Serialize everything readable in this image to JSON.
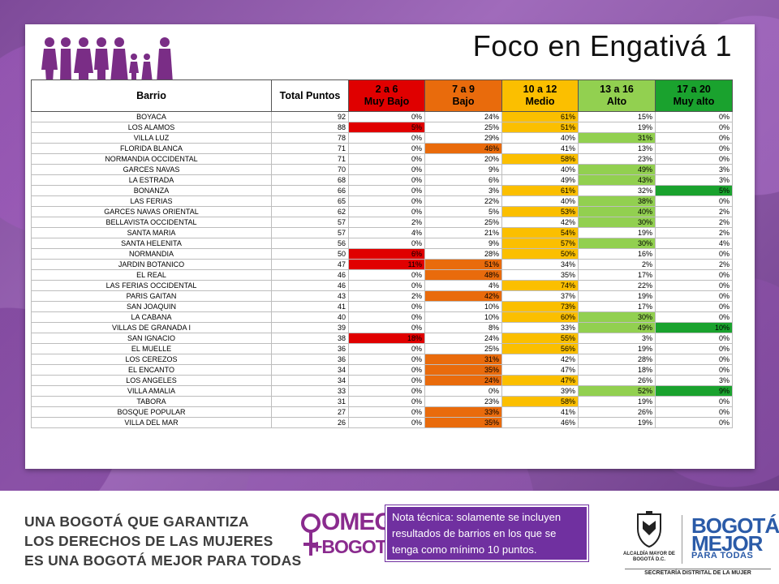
{
  "title": "Foco en Engativá 1",
  "table": {
    "headers": [
      {
        "line1": "Barrio",
        "line2": "",
        "color": "white"
      },
      {
        "line1": "Total Puntos",
        "line2": "",
        "color": "white"
      },
      {
        "line1": "2 a 6",
        "line2": "Muy Bajo",
        "color": "red"
      },
      {
        "line1": "7 a 9",
        "line2": "Bajo",
        "color": "orange"
      },
      {
        "line1": "10 a 12",
        "line2": "Medio",
        "color": "yellow"
      },
      {
        "line1": "13 a 16",
        "line2": "Alto",
        "color": "lgreen"
      },
      {
        "line1": "17 a 20",
        "line2": "Muy alto",
        "color": "green"
      }
    ],
    "rows": [
      {
        "barrio": "BOYACA",
        "total": "92",
        "v": [
          "0%",
          "24%",
          "61%",
          "15%",
          "0%"
        ],
        "hl": [
          null,
          null,
          "yellow",
          null,
          null
        ]
      },
      {
        "barrio": "LOS ALAMOS",
        "total": "88",
        "v": [
          "5%",
          "25%",
          "51%",
          "19%",
          "0%"
        ],
        "hl": [
          "red",
          null,
          "yellow",
          null,
          null
        ]
      },
      {
        "barrio": "VILLA LUZ",
        "total": "78",
        "v": [
          "0%",
          "29%",
          "40%",
          "31%",
          "0%"
        ],
        "hl": [
          null,
          null,
          null,
          "lgreen",
          null
        ]
      },
      {
        "barrio": "FLORIDA BLANCA",
        "total": "71",
        "v": [
          "0%",
          "46%",
          "41%",
          "13%",
          "0%"
        ],
        "hl": [
          null,
          "orange",
          null,
          null,
          null
        ]
      },
      {
        "barrio": "NORMANDIA OCCIDENTAL",
        "total": "71",
        "v": [
          "0%",
          "20%",
          "58%",
          "23%",
          "0%"
        ],
        "hl": [
          null,
          null,
          "yellow",
          null,
          null
        ]
      },
      {
        "barrio": "GARCES NAVAS",
        "total": "70",
        "v": [
          "0%",
          "9%",
          "40%",
          "49%",
          "3%"
        ],
        "hl": [
          null,
          null,
          null,
          "lgreen",
          null
        ]
      },
      {
        "barrio": "LA ESTRADA",
        "total": "68",
        "v": [
          "0%",
          "6%",
          "49%",
          "43%",
          "3%"
        ],
        "hl": [
          null,
          null,
          null,
          "lgreen",
          null
        ]
      },
      {
        "barrio": "BONANZA",
        "total": "66",
        "v": [
          "0%",
          "3%",
          "61%",
          "32%",
          "5%"
        ],
        "hl": [
          null,
          null,
          "yellow",
          null,
          "green"
        ]
      },
      {
        "barrio": "LAS FERIAS",
        "total": "65",
        "v": [
          "0%",
          "22%",
          "40%",
          "38%",
          "0%"
        ],
        "hl": [
          null,
          null,
          null,
          "lgreen",
          null
        ]
      },
      {
        "barrio": "GARCES NAVAS ORIENTAL",
        "total": "62",
        "v": [
          "0%",
          "5%",
          "53%",
          "40%",
          "2%"
        ],
        "hl": [
          null,
          null,
          "yellow",
          "lgreen",
          null
        ]
      },
      {
        "barrio": "BELLAVISTA OCCIDENTAL",
        "total": "57",
        "v": [
          "2%",
          "25%",
          "42%",
          "30%",
          "2%"
        ],
        "hl": [
          null,
          null,
          null,
          "lgreen",
          null
        ]
      },
      {
        "barrio": "SANTA MARIA",
        "total": "57",
        "v": [
          "4%",
          "21%",
          "54%",
          "19%",
          "2%"
        ],
        "hl": [
          null,
          null,
          "yellow",
          null,
          null
        ]
      },
      {
        "barrio": "SANTA HELENITA",
        "total": "56",
        "v": [
          "0%",
          "9%",
          "57%",
          "30%",
          "4%"
        ],
        "hl": [
          null,
          null,
          "yellow",
          "lgreen",
          null
        ]
      },
      {
        "barrio": "NORMANDIA",
        "total": "50",
        "v": [
          "6%",
          "28%",
          "50%",
          "16%",
          "0%"
        ],
        "hl": [
          "red",
          null,
          "yellow",
          null,
          null
        ]
      },
      {
        "barrio": "JARDIN BOTANICO",
        "total": "47",
        "v": [
          "11%",
          "51%",
          "34%",
          "2%",
          "2%"
        ],
        "hl": [
          "red",
          "orange",
          null,
          null,
          null
        ]
      },
      {
        "barrio": "EL REAL",
        "total": "46",
        "v": [
          "0%",
          "48%",
          "35%",
          "17%",
          "0%"
        ],
        "hl": [
          null,
          "orange",
          null,
          null,
          null
        ]
      },
      {
        "barrio": "LAS FERIAS OCCIDENTAL",
        "total": "46",
        "v": [
          "0%",
          "4%",
          "74%",
          "22%",
          "0%"
        ],
        "hl": [
          null,
          null,
          "yellow",
          null,
          null
        ]
      },
      {
        "barrio": "PARIS GAITAN",
        "total": "43",
        "v": [
          "2%",
          "42%",
          "37%",
          "19%",
          "0%"
        ],
        "hl": [
          null,
          "orange",
          null,
          null,
          null
        ]
      },
      {
        "barrio": "SAN JOAQUIN",
        "total": "41",
        "v": [
          "0%",
          "10%",
          "73%",
          "17%",
          "0%"
        ],
        "hl": [
          null,
          null,
          "yellow",
          null,
          null
        ]
      },
      {
        "barrio": "LA CABANA",
        "total": "40",
        "v": [
          "0%",
          "10%",
          "60%",
          "30%",
          "0%"
        ],
        "hl": [
          null,
          null,
          "yellow",
          "lgreen",
          null
        ]
      },
      {
        "barrio": "VILLAS DE GRANADA I",
        "total": "39",
        "v": [
          "0%",
          "8%",
          "33%",
          "49%",
          "10%"
        ],
        "hl": [
          null,
          null,
          null,
          "lgreen",
          "green"
        ]
      },
      {
        "barrio": "SAN IGNACIO",
        "total": "38",
        "v": [
          "18%",
          "24%",
          "55%",
          "3%",
          "0%"
        ],
        "hl": [
          "red",
          null,
          "yellow",
          null,
          null
        ]
      },
      {
        "barrio": "EL MUELLE",
        "total": "36",
        "v": [
          "0%",
          "25%",
          "56%",
          "19%",
          "0%"
        ],
        "hl": [
          null,
          null,
          "yellow",
          null,
          null
        ]
      },
      {
        "barrio": "LOS CEREZOS",
        "total": "36",
        "v": [
          "0%",
          "31%",
          "42%",
          "28%",
          "0%"
        ],
        "hl": [
          null,
          "orange",
          null,
          null,
          null
        ]
      },
      {
        "barrio": "EL ENCANTO",
        "total": "34",
        "v": [
          "0%",
          "35%",
          "47%",
          "18%",
          "0%"
        ],
        "hl": [
          null,
          "orange",
          null,
          null,
          null
        ]
      },
      {
        "barrio": "LOS ANGELES",
        "total": "34",
        "v": [
          "0%",
          "24%",
          "47%",
          "26%",
          "3%"
        ],
        "hl": [
          null,
          "orange",
          "yellow",
          null,
          null
        ]
      },
      {
        "barrio": "VILLA AMALIA",
        "total": "33",
        "v": [
          "0%",
          "0%",
          "39%",
          "52%",
          "9%"
        ],
        "hl": [
          null,
          null,
          null,
          "lgreen",
          "green"
        ]
      },
      {
        "barrio": "TABORA",
        "total": "31",
        "v": [
          "0%",
          "23%",
          "58%",
          "19%",
          "0%"
        ],
        "hl": [
          null,
          null,
          "yellow",
          null,
          null
        ]
      },
      {
        "barrio": "BOSQUE POPULAR",
        "total": "27",
        "v": [
          "0%",
          "33%",
          "41%",
          "26%",
          "0%"
        ],
        "hl": [
          null,
          "orange",
          null,
          null,
          null
        ]
      },
      {
        "barrio": "VILLA DEL MAR",
        "total": "26",
        "v": [
          "0%",
          "35%",
          "46%",
          "19%",
          "0%"
        ],
        "hl": [
          null,
          "orange",
          null,
          null,
          null
        ]
      }
    ]
  },
  "footer": {
    "slogan": [
      "UNA BOGOTÁ QUE GARANTIZA",
      "LOS DERECHOS DE LAS MUJERES",
      "ES UNA BOGOTÁ MEJOR PARA TODAS"
    ],
    "omeg_top": "OMEG",
    "omeg_bottom": "+BOGOTÁ",
    "note": "Nota técnica: solamente se incluyen resultados de barrios en los que se tenga como mínimo 10 puntos.",
    "alcaldia": "ALCALDÍA MAYOR DE BOGOTÁ D.C.",
    "bogota_logo": [
      "BOGOTÁ",
      "MEJOR",
      "PARA TODAS"
    ],
    "secretaria": "SECRETARÍA DISTRITAL DE LA MUJER"
  },
  "colors": {
    "red": "#e00000",
    "orange": "#e96b0c",
    "yellow": "#fbbf00",
    "lgreen": "#92d050",
    "green": "#1aa22e",
    "purple": "#7030a0",
    "figures": "#7a2d86"
  },
  "icons": [
    "women-figures-icon",
    "venus-symbol-icon",
    "coat-of-arms-icon"
  ]
}
